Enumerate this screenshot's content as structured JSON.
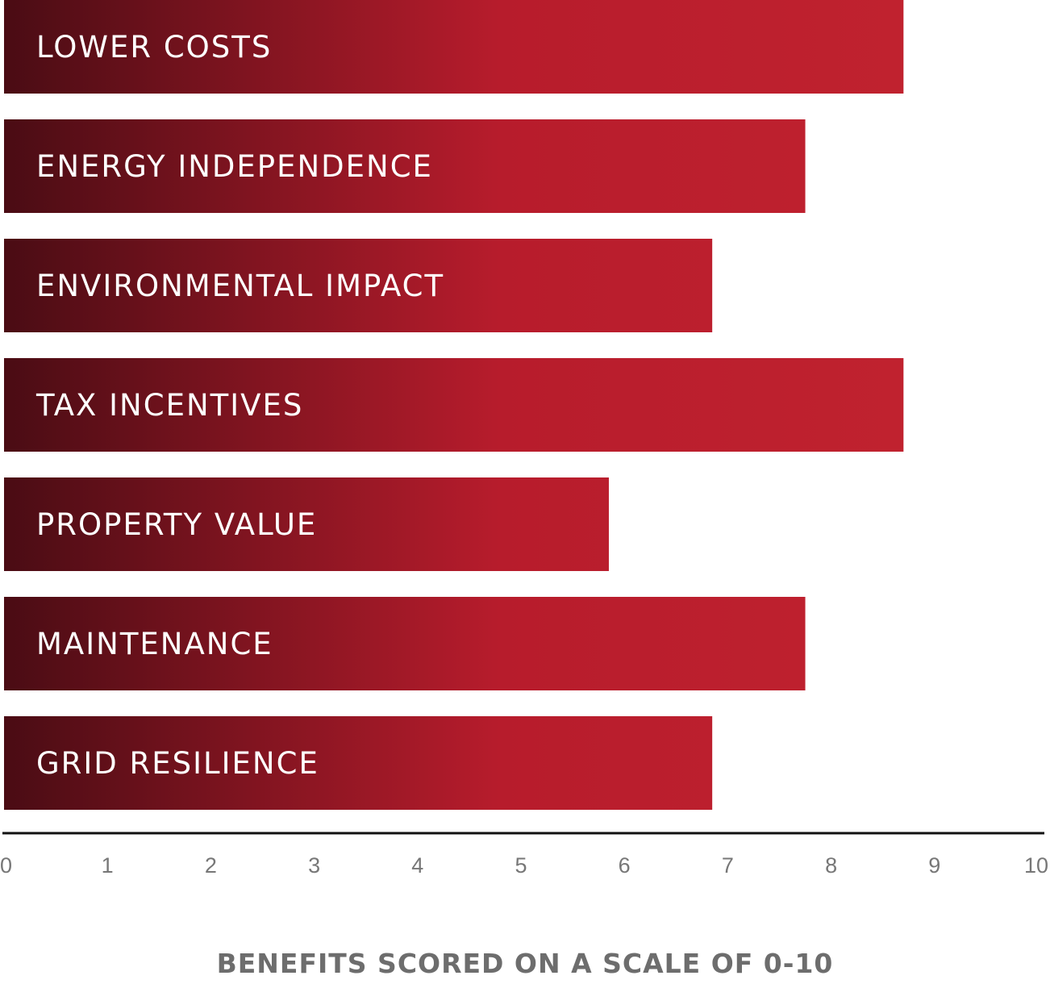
{
  "chart_data": {
    "type": "bar",
    "orientation": "horizontal",
    "categories": [
      "LOWER COSTS",
      "ENERGY INDEPENDENCE",
      "ENVIRONMENTAL IMPACT",
      "TAX INCENTIVES",
      "PROPERTY VALUE",
      "MAINTENANCE",
      "GRID RESILIENCE"
    ],
    "values": [
      8.7,
      7.75,
      6.85,
      8.7,
      5.85,
      7.75,
      6.85
    ],
    "xlim": [
      0,
      10
    ],
    "xticks": [
      "0",
      "1",
      "2",
      "3",
      "4",
      "5",
      "6",
      "7",
      "8",
      "9",
      "10"
    ],
    "xlabel": "BENEFITS SCORED ON A SCALE OF 0-10",
    "grid": false,
    "legend": "none",
    "colors": {
      "bar_start": "#4a0c14",
      "bar_mid": "#b71c2c",
      "bar_end": "#c0222f",
      "axis": "#111111"
    }
  }
}
